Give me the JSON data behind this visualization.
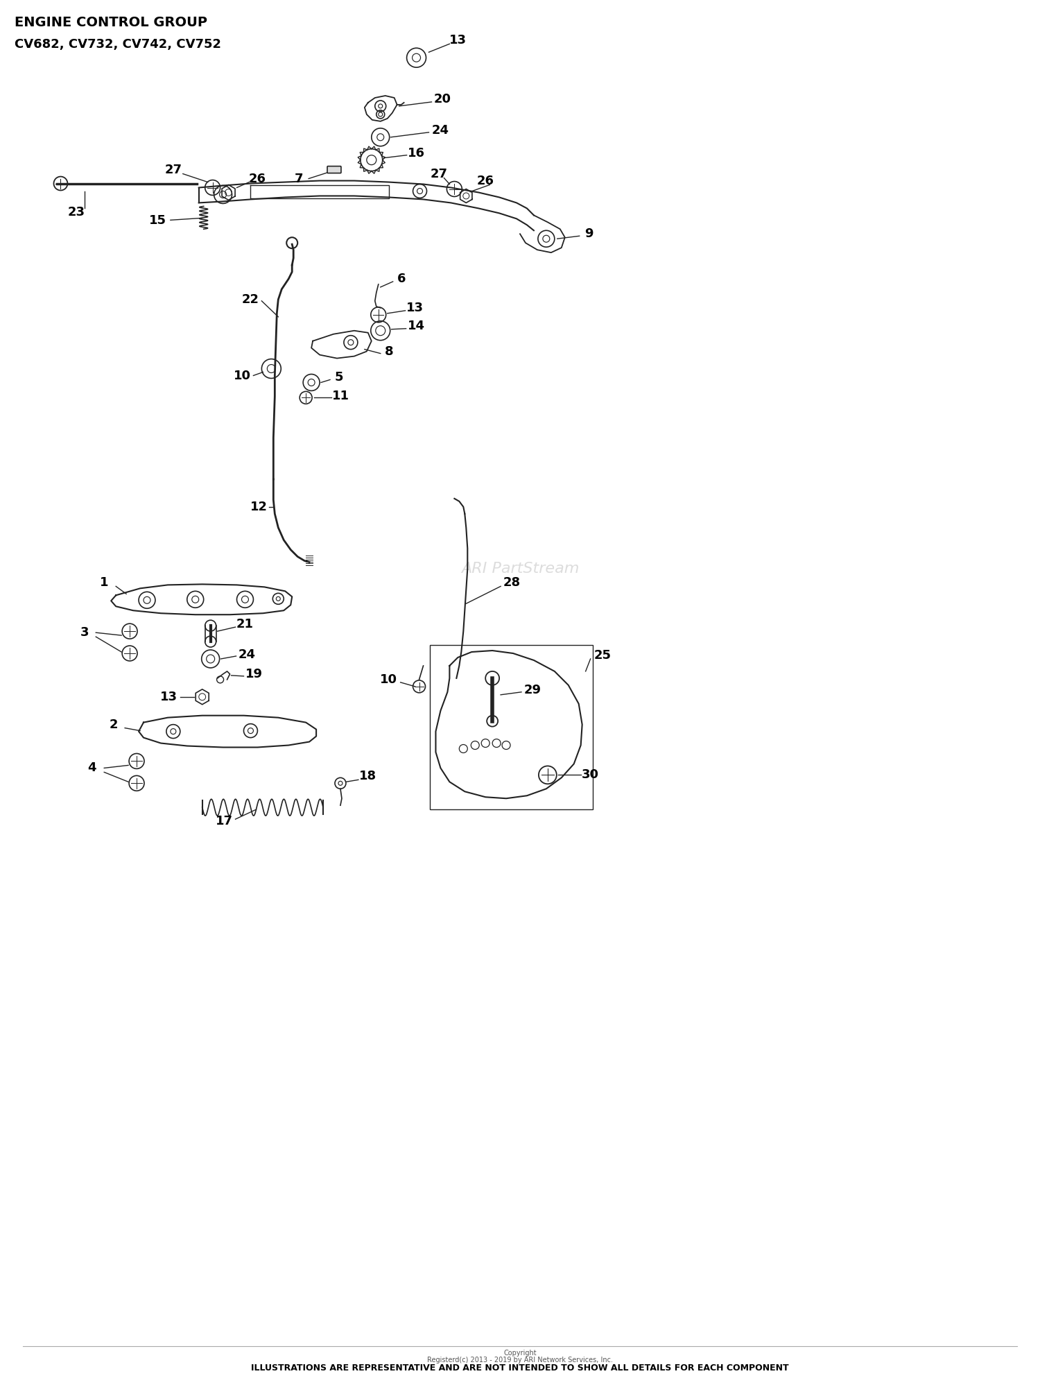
{
  "title_line1": "ENGINE CONTROL GROUP",
  "title_line2": "CV682, CV732, CV742, CV752",
  "footer_line1": "Copyright",
  "footer_line2": "Registerd(c) 2013 - 2019 by ARI Network Services, Inc.",
  "footer_line3": "ILLUSTRATIONS ARE REPRESENTATIVE AND ARE NOT INTENDED TO SHOW ALL DETAILS FOR EACH COMPONENT",
  "watermark": "ARI PartStream",
  "bg": "#ffffff",
  "lc": "#222222",
  "tc": "#000000"
}
